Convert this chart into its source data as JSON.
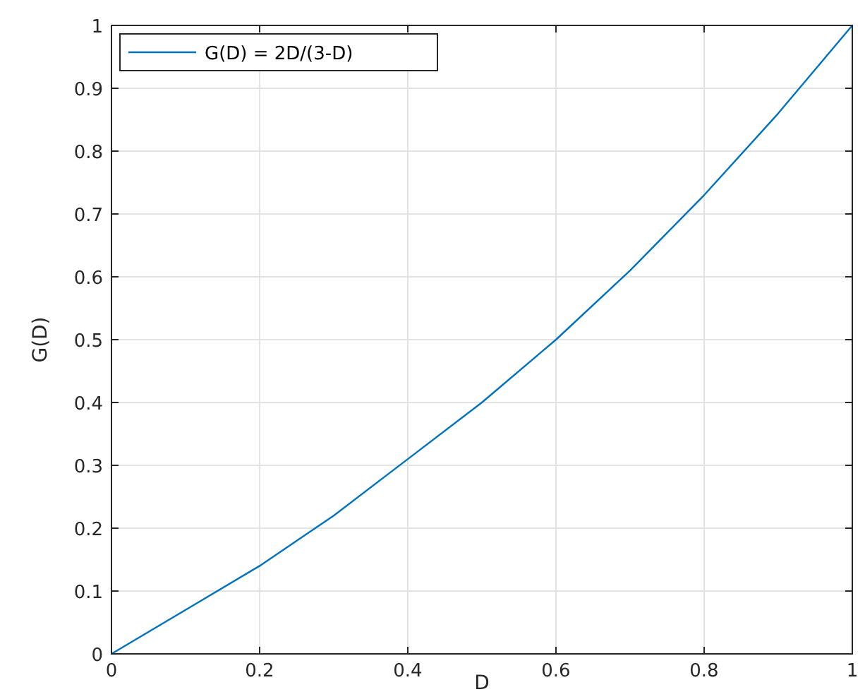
{
  "chart_data": {
    "type": "line",
    "xlabel": "D",
    "ylabel": "G(D)",
    "x": [
      0,
      0.1,
      0.2,
      0.3,
      0.4,
      0.5,
      0.6,
      0.7,
      0.8,
      0.9,
      1
    ],
    "series": [
      {
        "name": "G(D) = 2D/(3-D)",
        "color": "#0072bd",
        "values": [
          0,
          0.07,
          0.14,
          0.22,
          0.31,
          0.4,
          0.5,
          0.61,
          0.73,
          0.86,
          1
        ]
      }
    ],
    "xlim": [
      0,
      1
    ],
    "xticks": [
      0,
      0.2,
      0.4,
      0.6,
      0.8,
      1
    ],
    "ylim": [
      0,
      1
    ],
    "yticks": [
      0,
      0.1,
      0.2,
      0.3,
      0.4,
      0.5,
      0.6,
      0.7,
      0.8,
      0.9,
      1
    ],
    "grid": true,
    "legend": "top left",
    "marker": "none",
    "line_style": "solid"
  }
}
